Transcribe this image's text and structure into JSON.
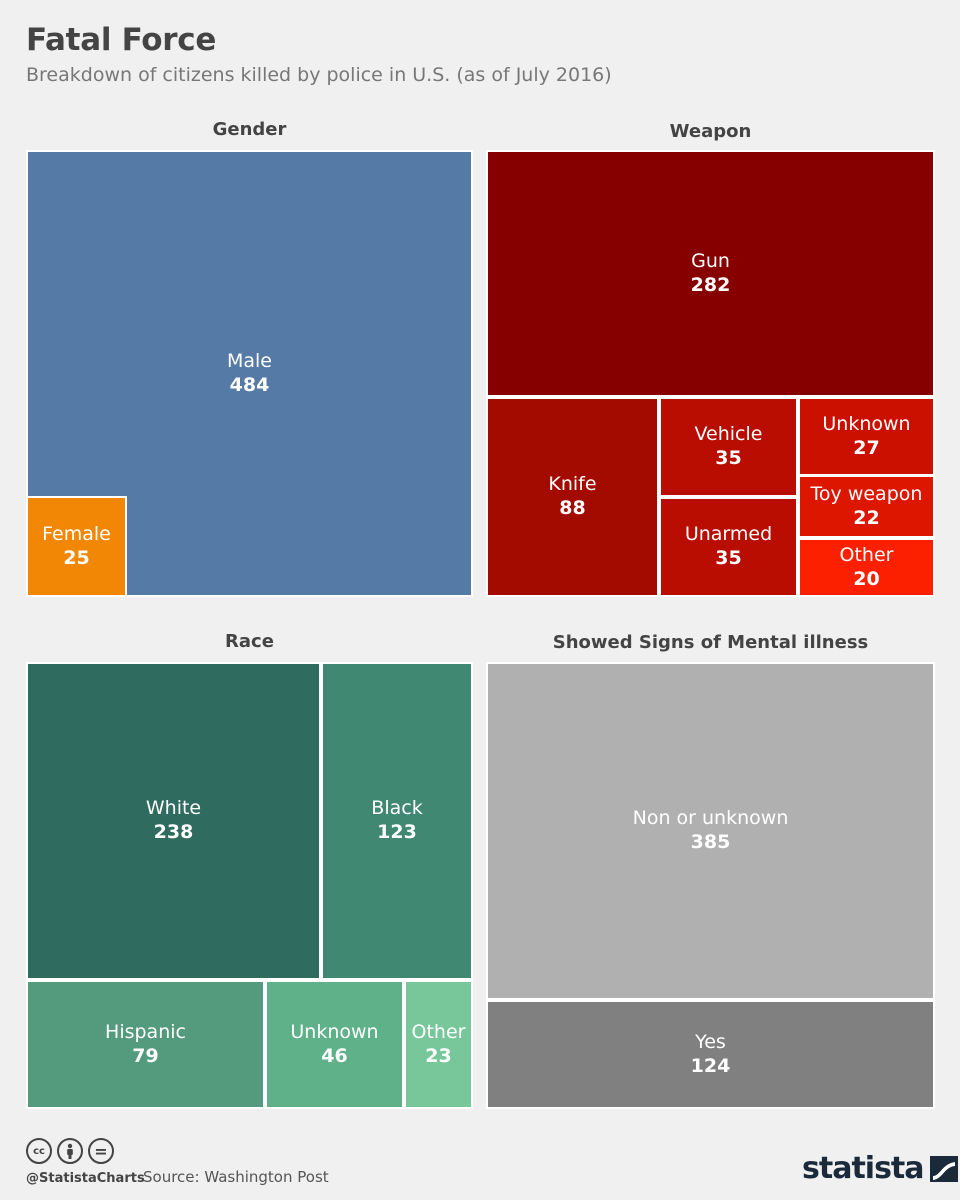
{
  "header": {
    "title": "Fatal Force",
    "subtitle": "Breakdown of citizens killed by police in U.S. (as of July 2016)"
  },
  "footer": {
    "cc_icon": "creative-commons-icon",
    "by_icon": "attribution-icon",
    "nd_icon": "no-derivatives-icon",
    "cc_glyph": "cc",
    "nd_glyph": "=",
    "handle": "@StatistaCharts",
    "source": "Source: Washington Post",
    "brand": "statista"
  },
  "colors": {
    "male": "#557aa5",
    "female": "#f28705",
    "gun": "#860000",
    "knife": "#a30a00",
    "vehicle": "#b80d00",
    "unarmed": "#b80d00",
    "weapon_unknown": "#cc1000",
    "toy_weapon": "#dd1600",
    "weapon_other": "#fc2000",
    "white": "#306b60",
    "black": "#408871",
    "hispanic": "#549b7e",
    "race_unknown": "#5fb18a",
    "race_other": "#77c79a",
    "mental_none": "#b0b0b0",
    "mental_yes": "#808080"
  },
  "chart_data": [
    {
      "type": "treemap",
      "title": "Gender",
      "categories": [
        "Male",
        "Female"
      ],
      "values": [
        484,
        25
      ]
    },
    {
      "type": "treemap",
      "title": "Weapon",
      "categories": [
        "Gun",
        "Knife",
        "Vehicle",
        "Unarmed",
        "Unknown",
        "Toy weapon",
        "Other"
      ],
      "values": [
        282,
        88,
        35,
        35,
        27,
        22,
        20
      ]
    },
    {
      "type": "treemap",
      "title": "Race",
      "categories": [
        "White",
        "Black",
        "Hispanic",
        "Unknown",
        "Other"
      ],
      "values": [
        238,
        123,
        79,
        46,
        23
      ]
    },
    {
      "type": "treemap",
      "title": "Showed Signs of Mental illness",
      "categories": [
        "Non or unknown",
        "Yes"
      ],
      "values": [
        385,
        124
      ]
    }
  ]
}
